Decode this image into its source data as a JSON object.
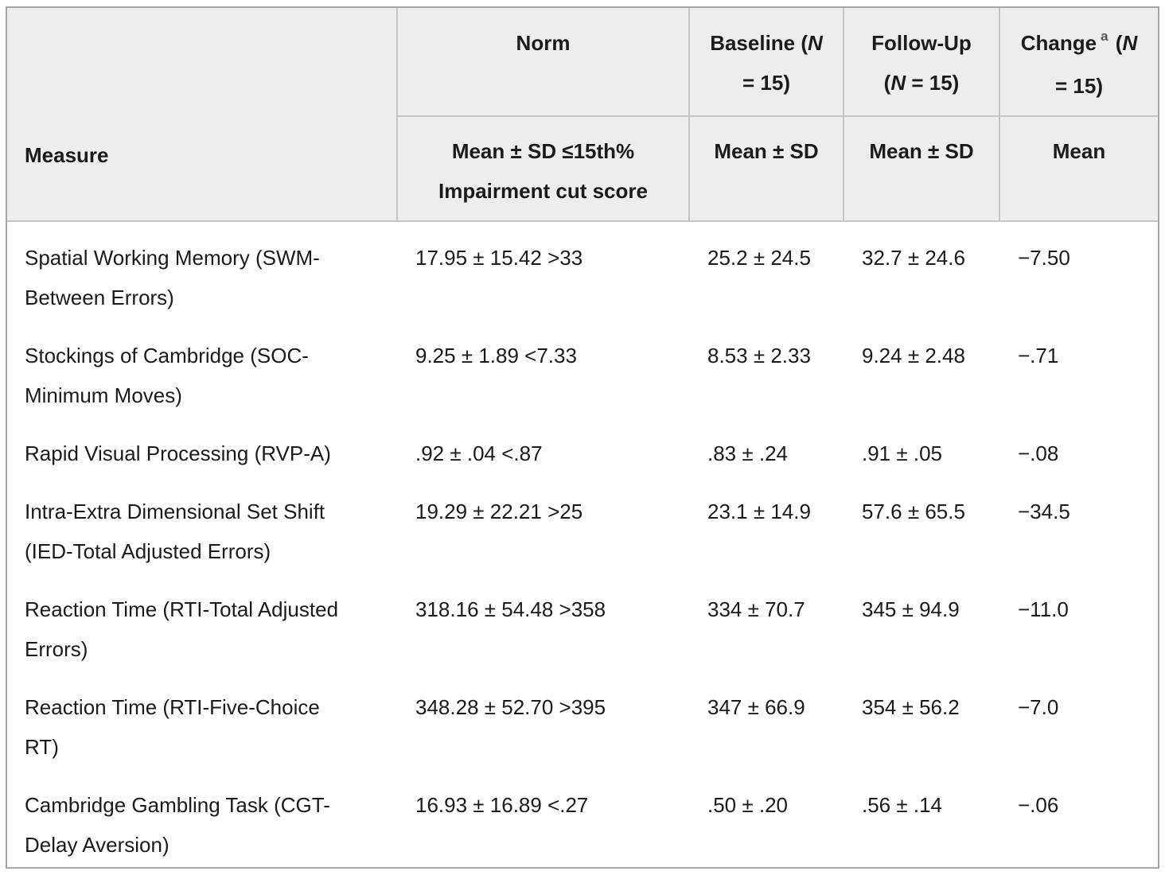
{
  "header": {
    "measure": "Measure",
    "norm": {
      "title_lines": [
        [
          {
            "t": "Norm"
          }
        ]
      ],
      "sub_lines": [
        "Mean ± SD ≤15th%",
        "Impairment cut score"
      ]
    },
    "baseline": {
      "title_lines": [
        [
          {
            "t": "Baseline ("
          },
          {
            "t": "N",
            "it": true
          }
        ],
        [
          {
            "t": "= 15)"
          }
        ]
      ],
      "sub": "Mean ± SD"
    },
    "followup": {
      "title_lines": [
        [
          {
            "t": "Follow-Up"
          }
        ],
        [
          {
            "t": "("
          },
          {
            "t": "N",
            "it": true
          },
          {
            "t": " = 15)"
          }
        ]
      ],
      "sub": "Mean ± SD"
    },
    "change": {
      "title_lines": [
        [
          {
            "t": "Change"
          },
          {
            "t": "a",
            "sup": true
          },
          {
            "t": " ("
          },
          {
            "t": "N",
            "it": true
          }
        ],
        [
          {
            "t": "= 15)"
          }
        ]
      ],
      "sub": "Mean"
    }
  },
  "rows": [
    {
      "measure": "Spatial Working Memory (SWM-Between Errors)",
      "norm": "17.95 ± 15.42 >33",
      "baseline": "25.2 ± 24.5",
      "followup": "32.7 ± 24.6",
      "change": "−7.50"
    },
    {
      "measure": "Stockings of Cambridge (SOC-Minimum Moves)",
      "norm": "9.25 ± 1.89 <7.33",
      "baseline": "8.53 ± 2.33",
      "followup": "9.24 ± 2.48",
      "change": "−.71"
    },
    {
      "measure": "Rapid Visual Processing (RVP-A)",
      "norm": ".92 ± .04 <.87",
      "baseline": ".83 ± .24",
      "followup": ".91 ± .05",
      "change": "−.08"
    },
    {
      "measure": "Intra-Extra Dimensional Set Shift (IED-Total Adjusted Errors)",
      "norm": "19.29 ± 22.21 >25",
      "baseline": "23.1 ± 14.9",
      "followup": "57.6 ± 65.5",
      "change": "−34.5"
    },
    {
      "measure": "Reaction Time (RTI-Total Adjusted Errors)",
      "norm": "318.16 ± 54.48 >358",
      "baseline": "334 ± 70.7",
      "followup": "345 ± 94.9",
      "change": "−11.0"
    },
    {
      "measure": "Reaction Time (RTI-Five-Choice RT)",
      "norm": "348.28 ± 52.70 >395",
      "baseline": "347 ± 66.9",
      "followup": "354 ± 56.2",
      "change": "−7.0"
    },
    {
      "measure": "Cambridge Gambling Task (CGT-Delay Aversion)",
      "norm": "16.93 ± 16.89 <.27",
      "baseline": ".50 ± .20",
      "followup": ".56 ± .14",
      "change": "−.06"
    }
  ],
  "colors": {
    "page_bg": "#ffffff",
    "header_bg": "#ededed",
    "outer_border": "#a6a6a6",
    "inner_border": "#c5c5c5",
    "text": "#1b1b1b",
    "footnote_marker": "#555555"
  }
}
